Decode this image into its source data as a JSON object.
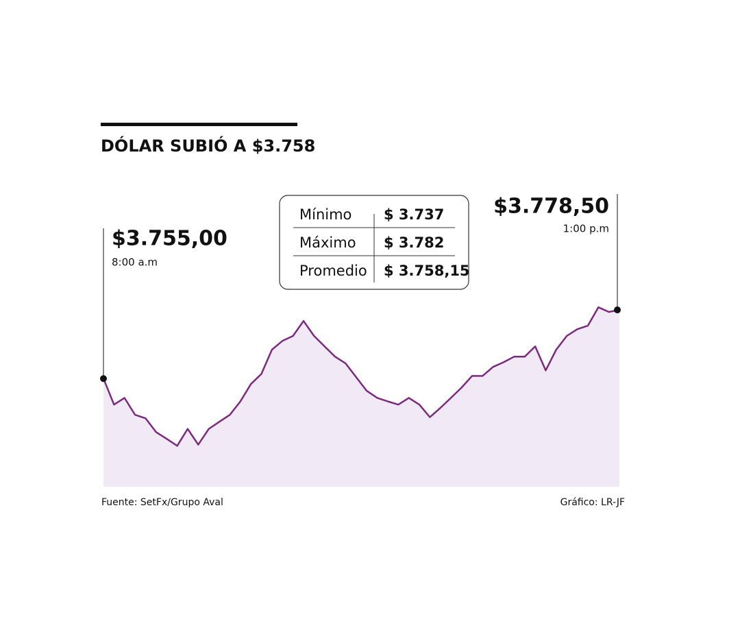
{
  "chart_data": {
    "type": "area",
    "title": "DÓLAR SUBIÓ A $3.758",
    "categories": [
      "8:00 a.m",
      null,
      null,
      null,
      null,
      null,
      null,
      null,
      null,
      null,
      null,
      null,
      null,
      null,
      null,
      null,
      null,
      null,
      null,
      null,
      null,
      null,
      null,
      null,
      null,
      null,
      null,
      null,
      null,
      null,
      null,
      null,
      null,
      null,
      null,
      null,
      null,
      null,
      null,
      null,
      null,
      null,
      null,
      null,
      null,
      null,
      null,
      null,
      null,
      "1:00 p.m"
    ],
    "values": [
      3755,
      3746.1,
      3748.4,
      3742.6,
      3741.4,
      3736.7,
      3734.4,
      3732.0,
      3737.8,
      3732.4,
      3737.8,
      3740.2,
      3742.6,
      3747.2,
      3753.1,
      3756.6,
      3764.9,
      3767.9,
      3769.6,
      3774.7,
      3769.6,
      3766.0,
      3762.5,
      3760.2,
      3755.5,
      3750.8,
      3748.4,
      3747.2,
      3746.1,
      3748.4,
      3746.1,
      3741.8,
      3745.0,
      3748.4,
      3751.9,
      3755.9,
      3755.9,
      3759.0,
      3760.6,
      3762.5,
      3762.5,
      3766.0,
      3757.8,
      3764.9,
      3769.6,
      3771.9,
      3773.1,
      3779.4,
      3777.8,
      3778.5
    ],
    "value_labels": [
      "$3.755,00",
      null,
      null,
      null,
      null,
      null,
      null,
      null,
      null,
      null,
      null,
      null,
      null,
      null,
      null,
      null,
      null,
      null,
      null,
      null,
      null,
      null,
      null,
      null,
      null,
      null,
      null,
      null,
      null,
      null,
      null,
      null,
      null,
      null,
      null,
      null,
      null,
      null,
      null,
      null,
      null,
      null,
      null,
      null,
      null,
      null,
      null,
      null,
      null,
      "$3.778,50"
    ],
    "ylim": [
      3718,
      3790
    ],
    "color": "#7b2a7e",
    "fill": "#f1e9f5",
    "stats": [
      {
        "name": "Mínimo",
        "label": "$ 3.737"
      },
      {
        "name": "Máximo",
        "label": "$ 3.782"
      },
      {
        "name": "Promedio",
        "label": "$ 3.758,15"
      }
    ],
    "source": "Fuente: SetFx/Grupo Aval",
    "credit": "Gráfico: LR-JF"
  }
}
